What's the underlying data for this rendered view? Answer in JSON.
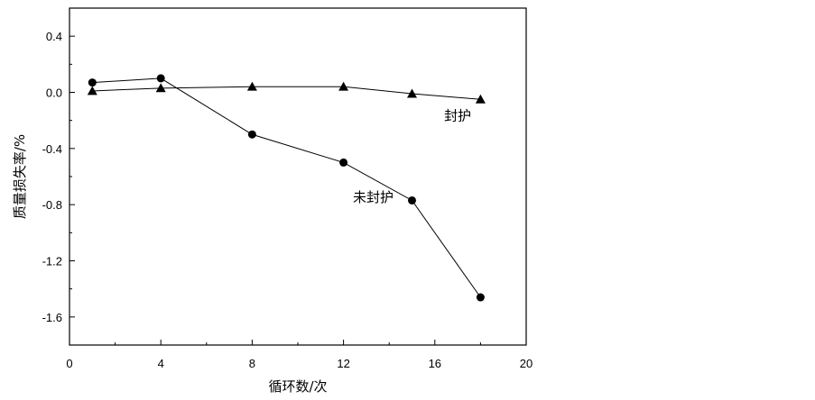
{
  "chart_data": {
    "type": "line",
    "xlabel": "循环数/次",
    "ylabel": "质量损失率/%",
    "xlim": [
      0,
      20
    ],
    "ylim": [
      -1.8,
      0.6
    ],
    "x_ticks": [
      0,
      4,
      8,
      12,
      16,
      20
    ],
    "x_tick_labels": [
      "0",
      "4",
      "8",
      "12",
      "16",
      "20"
    ],
    "y_ticks": [
      0.4,
      0.0,
      -0.4,
      -0.8,
      -1.2,
      -1.6
    ],
    "y_tick_labels": [
      "0.4",
      "0.0",
      "-0.4",
      "-0.8",
      "-1.2",
      "-1.6"
    ],
    "grid": false,
    "series": [
      {
        "name": "封护",
        "marker": "triangle",
        "color": "#000000",
        "x": [
          1,
          4,
          8,
          12,
          15,
          18
        ],
        "y": [
          0.01,
          0.03,
          0.04,
          0.04,
          -0.01,
          -0.05
        ]
      },
      {
        "name": "未封护",
        "marker": "circle",
        "color": "#000000",
        "x": [
          1,
          4,
          8,
          12,
          15,
          18
        ],
        "y": [
          0.07,
          0.1,
          -0.3,
          -0.5,
          -0.77,
          -1.46
        ]
      }
    ],
    "annotations": [
      {
        "text": "封护",
        "x": 17.0,
        "y": -0.2
      },
      {
        "text": "未封护",
        "x": 13.3,
        "y": -0.78
      }
    ]
  }
}
